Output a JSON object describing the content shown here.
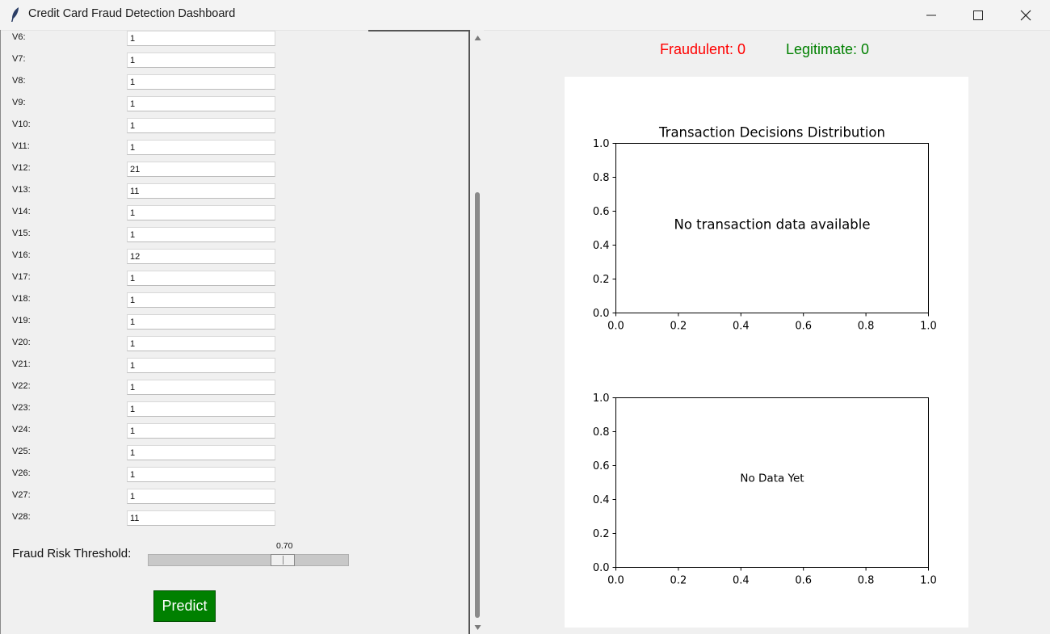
{
  "window": {
    "title": "Credit Card Fraud Detection Dashboard",
    "icons": [
      "feather-icon",
      "minimize-icon",
      "maximize-icon",
      "close-icon"
    ]
  },
  "features": [
    {
      "label": "V6:",
      "value": "1"
    },
    {
      "label": "V7:",
      "value": "1"
    },
    {
      "label": "V8:",
      "value": "1"
    },
    {
      "label": "V9:",
      "value": "1"
    },
    {
      "label": "V10:",
      "value": "1"
    },
    {
      "label": "V11:",
      "value": "1"
    },
    {
      "label": "V12:",
      "value": "21"
    },
    {
      "label": "V13:",
      "value": "11"
    },
    {
      "label": "V14:",
      "value": "1"
    },
    {
      "label": "V15:",
      "value": "1"
    },
    {
      "label": "V16:",
      "value": "12"
    },
    {
      "label": "V17:",
      "value": "1"
    },
    {
      "label": "V18:",
      "value": "1"
    },
    {
      "label": "V19:",
      "value": "1"
    },
    {
      "label": "V20:",
      "value": "1"
    },
    {
      "label": "V21:",
      "value": "1"
    },
    {
      "label": "V22:",
      "value": "1"
    },
    {
      "label": "V23:",
      "value": "1"
    },
    {
      "label": "V24:",
      "value": "1"
    },
    {
      "label": "V25:",
      "value": "1"
    },
    {
      "label": "V26:",
      "value": "1"
    },
    {
      "label": "V27:",
      "value": "1"
    },
    {
      "label": "V28:",
      "value": "11"
    }
  ],
  "threshold": {
    "label": "Fraud Risk Threshold:",
    "value_text": "0.70",
    "value": 0.7,
    "min": 0,
    "max": 1
  },
  "predict_label": "Predict",
  "counts": {
    "fraudulent": "Fraudulent: 0",
    "legitimate": "Legitimate: 0",
    "fraud_color": "#ff0000",
    "legit_color": "#008000",
    "predict_color": "#008000"
  },
  "chart_data": [
    {
      "type": "bar",
      "title": "Transaction Decisions Distribution",
      "placeholder_text": "No transaction data available",
      "xlim": [
        0.0,
        1.0
      ],
      "ylim": [
        0.0,
        1.0
      ],
      "xticks": [
        "0.0",
        "0.2",
        "0.4",
        "0.6",
        "0.8",
        "1.0"
      ],
      "yticks": [
        "0.0",
        "0.2",
        "0.4",
        "0.6",
        "0.8",
        "1.0"
      ],
      "grid": false,
      "series": []
    },
    {
      "type": "line",
      "title": "",
      "placeholder_text": "No Data Yet",
      "xlim": [
        0.0,
        1.0
      ],
      "ylim": [
        0.0,
        1.0
      ],
      "xticks": [
        "0.0",
        "0.2",
        "0.4",
        "0.6",
        "0.8",
        "1.0"
      ],
      "yticks": [
        "0.0",
        "0.2",
        "0.4",
        "0.6",
        "0.8",
        "1.0"
      ],
      "grid": false,
      "series": []
    }
  ]
}
